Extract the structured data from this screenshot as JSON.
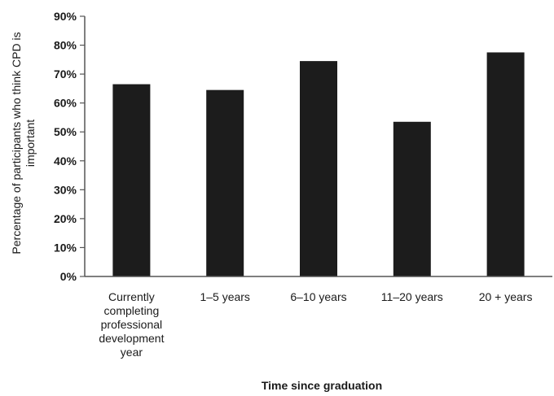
{
  "chart_data": {
    "type": "bar",
    "categories": [
      "Currently completing professional development year",
      "1–5 years",
      "6–10 years",
      "11–20 years",
      "20 + years"
    ],
    "category_lines": [
      [
        "Currently",
        "completing",
        "professional",
        "development",
        "year"
      ],
      [
        "1–5 years"
      ],
      [
        "6–10 years"
      ],
      [
        "11–20 years"
      ],
      [
        "20 + years"
      ]
    ],
    "values": [
      66.5,
      64.5,
      74.5,
      53.5,
      77.5
    ],
    "xlabel": "Time since graduation",
    "ylabel_lines": [
      "Percentage of participants who think CPD is",
      "important"
    ],
    "ylim": [
      0,
      90
    ],
    "yticks": [
      0,
      10,
      20,
      30,
      40,
      50,
      60,
      70,
      80,
      90
    ],
    "ytick_labels": [
      "0%",
      "10%",
      "20%",
      "30%",
      "40%",
      "50%",
      "60%",
      "70%",
      "80%",
      "90%"
    ],
    "bar_color": "#1c1c1c",
    "grid": false
  }
}
